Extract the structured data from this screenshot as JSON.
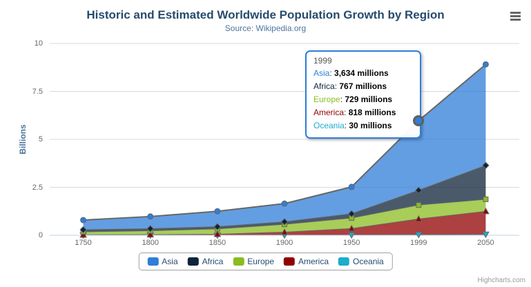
{
  "credits": {
    "label": "Highcharts.com"
  },
  "icons": {
    "export_menu": "hamburger-icon"
  },
  "colors": {
    "title": "#274b6d",
    "subtitle": "#4d759e",
    "axis_title": "#4d759e",
    "axis_label": "#666666",
    "grid": "#d8d8d8",
    "axis_line": "#c0d0e0",
    "legend_text": "#274b6d",
    "tooltip_border": "#2f7ed8"
  },
  "chart_data": {
    "type": "area",
    "stacking": "normal",
    "title": "Historic and Estimated Worldwide Population Growth by Region",
    "subtitle": "Source: Wikipedia.org",
    "categories": [
      "1750",
      "1800",
      "1850",
      "1900",
      "1950",
      "1999",
      "2050"
    ],
    "xlabel": "",
    "ylabel": "Billions",
    "unit": "millions",
    "ylim": [
      0,
      10
    ],
    "yticks": [
      "0",
      "2.5",
      "5",
      "7.5",
      "10"
    ],
    "grid": "horizontal",
    "legend_position": "bottom",
    "line_color": "#666666",
    "fill_opacity": 0.75,
    "series": [
      {
        "name": "Asia",
        "color": "#2f7ed8",
        "marker": "circle",
        "values": [
          502,
          635,
          809,
          947,
          1402,
          3634,
          5268
        ]
      },
      {
        "name": "Africa",
        "color": "#0d233a",
        "marker": "diamond",
        "values": [
          106,
          107,
          111,
          133,
          221,
          767,
          1766
        ]
      },
      {
        "name": "Europe",
        "color": "#8bbc21",
        "marker": "square",
        "values": [
          163,
          203,
          276,
          408,
          547,
          729,
          628
        ]
      },
      {
        "name": "America",
        "color": "#910000",
        "marker": "triangle",
        "values": [
          18,
          31,
          54,
          156,
          339,
          818,
          1201
        ]
      },
      {
        "name": "Oceania",
        "color": "#1aadce",
        "marker": "triangle-down",
        "values": [
          2,
          2,
          2,
          6,
          13,
          30,
          46
        ]
      }
    ]
  },
  "hover": {
    "series": "Asia",
    "category": "1999",
    "tooltip": {
      "header": "1999",
      "rows": [
        {
          "name": "Asia",
          "value": "3,634 millions",
          "color": "#2f7ed8"
        },
        {
          "name": "Africa",
          "value": "767 millions",
          "color": "#0d233a"
        },
        {
          "name": "Europe",
          "value": "729 millions",
          "color": "#8bbc21"
        },
        {
          "name": "America",
          "value": "818 millions",
          "color": "#910000"
        },
        {
          "name": "Oceania",
          "value": "30 millions",
          "color": "#1aadce"
        }
      ]
    }
  }
}
